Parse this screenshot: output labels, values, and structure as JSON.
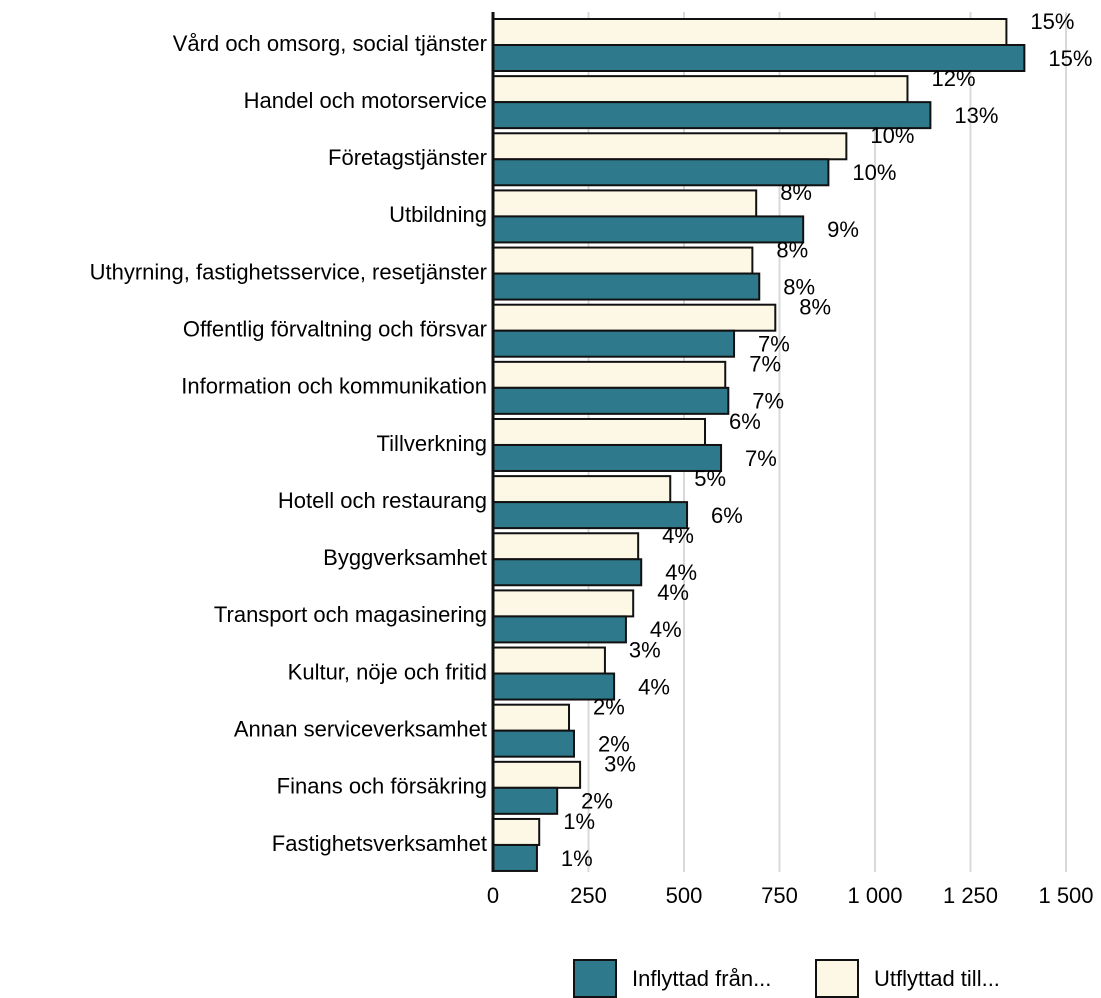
{
  "chart_data": {
    "type": "barh",
    "categories": [
      "Vård och omsorg, social tjänster",
      "Handel och motorservice",
      "Företagstjänster",
      "Utbildning",
      "Uthyrning, fastighetsservice, resetjänster",
      "Offentlig förvaltning och försvar",
      "Information och kommunikation",
      "Tillverkning",
      "Hotell och restaurang",
      "Byggverksamhet",
      "Transport och magasinering",
      "Kultur, nöje och fritid",
      "Annan serviceverksamhet",
      "Finans och försäkring",
      "Fastighetsverksamhet"
    ],
    "series": [
      {
        "name": "Inflyttad från...",
        "color": "#2e7a8c",
        "values": [
          1391,
          1145,
          878,
          812,
          697,
          631,
          616,
          597,
          508,
          388,
          348,
          317,
          212,
          168,
          115
        ],
        "share_labels": [
          "15%",
          "13%",
          "10%",
          "9%",
          "8%",
          "7%",
          "7%",
          "7%",
          "6%",
          "4%",
          "4%",
          "4%",
          "2%",
          "2%",
          "1%"
        ]
      },
      {
        "name": "Utflyttad till...",
        "color": "#fdf8e6",
        "values": [
          1344,
          1085,
          925,
          689,
          679,
          739,
          608,
          555,
          464,
          380,
          367,
          293,
          199,
          228,
          121
        ],
        "share_labels": [
          "15%",
          "12%",
          "10%",
          "8%",
          "8%",
          "8%",
          "7%",
          "6%",
          "5%",
          "4%",
          "4%",
          "3%",
          "2%",
          "3%",
          "1%"
        ]
      }
    ],
    "xlim": [
      0,
      1500
    ],
    "xticks": [
      0,
      250,
      500,
      750,
      {
        "value": 1000,
        "label": "1 000"
      },
      {
        "value": 1250,
        "label": "1 250"
      },
      {
        "value": 1500,
        "label": "1 500"
      }
    ],
    "grid": true
  }
}
